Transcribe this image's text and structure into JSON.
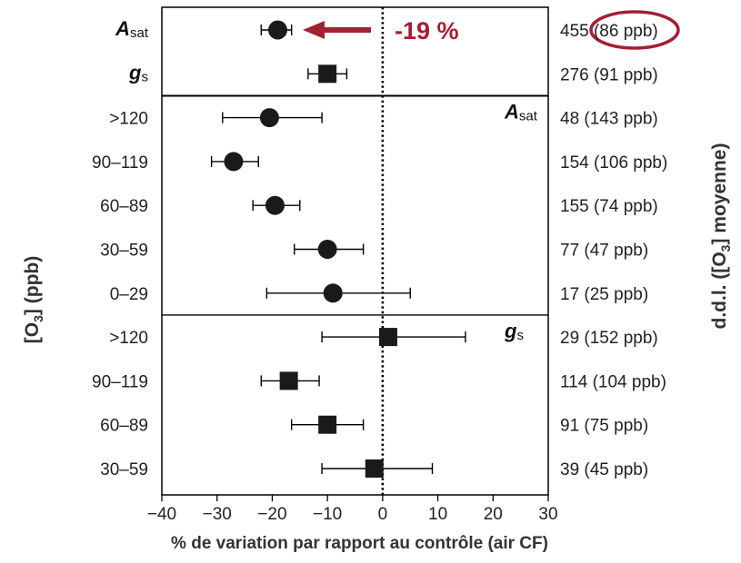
{
  "chart_data": {
    "type": "scatter",
    "subtype": "forest-plot",
    "xlabel": "% de variation par rapport au contrôle (air CF)",
    "ylabel_left": "[O3] (ppb)",
    "ylabel_right": "d.d.l. ([O3] moyenne)",
    "xlim": [
      -40,
      30
    ],
    "xticks": [
      -40,
      -30,
      -20,
      -10,
      0,
      10,
      20,
      30
    ],
    "xtick_labels": [
      "−40",
      "−30",
      "−20",
      "−10",
      "0",
      "10",
      "20",
      "30"
    ],
    "zero_line": "dotted",
    "panels": [
      {
        "name": "summary",
        "rows": [
          {
            "label_main": "A",
            "label_sub": "sat",
            "marker": "circle",
            "mean": -19,
            "ci": [
              -22,
              -16.5
            ],
            "right": "455 (86 ppb)"
          },
          {
            "label_main": "g",
            "label_sub": "s",
            "marker": "square",
            "mean": -10,
            "ci": [
              -13.5,
              -6.5
            ],
            "right": "276 (91 ppb)"
          }
        ]
      },
      {
        "name": "Asat",
        "corner_label_main": "A",
        "corner_label_sub": "sat",
        "marker": "circle",
        "rows": [
          {
            "label": ">120",
            "mean": -20.5,
            "ci": [
              -29,
              -11
            ],
            "right": "48 (143 ppb)"
          },
          {
            "label": "90–119",
            "mean": -27,
            "ci": [
              -31,
              -22.5
            ],
            "right": "154 (106 ppb)"
          },
          {
            "label": "60–89",
            "mean": -19.5,
            "ci": [
              -23.5,
              -15
            ],
            "right": "155 (74 ppb)"
          },
          {
            "label": "30–59",
            "mean": -10,
            "ci": [
              -16,
              -3.5
            ],
            "right": "77 (47 ppb)"
          },
          {
            "label": "0–29",
            "mean": -9,
            "ci": [
              -21,
              5
            ],
            "right": "17 (25 ppb)"
          }
        ]
      },
      {
        "name": "gs",
        "corner_label_main": "g",
        "corner_label_sub": "s",
        "marker": "square",
        "rows": [
          {
            "label": ">120",
            "mean": 1,
            "ci": [
              -11,
              15
            ],
            "right": "29 (152 ppb)"
          },
          {
            "label": "90–119",
            "mean": -17,
            "ci": [
              -22,
              -11.5
            ],
            "right": "114 (104 ppb)"
          },
          {
            "label": "60–89",
            "mean": -10,
            "ci": [
              -16.5,
              -3.5
            ],
            "right": "91 (75 ppb)"
          },
          {
            "label": "30–59",
            "mean": -1.5,
            "ci": [
              -11,
              9
            ],
            "right": "39 (45 ppb)"
          }
        ]
      }
    ],
    "annotation": {
      "text": "-19 %",
      "color": "#a31f34",
      "target": "Asat summary point",
      "highlight_circle": "(86 ppb)"
    }
  },
  "colors": {
    "marker": "#1a1a1a",
    "annotation": "#a31f34",
    "axis": "#000000"
  }
}
